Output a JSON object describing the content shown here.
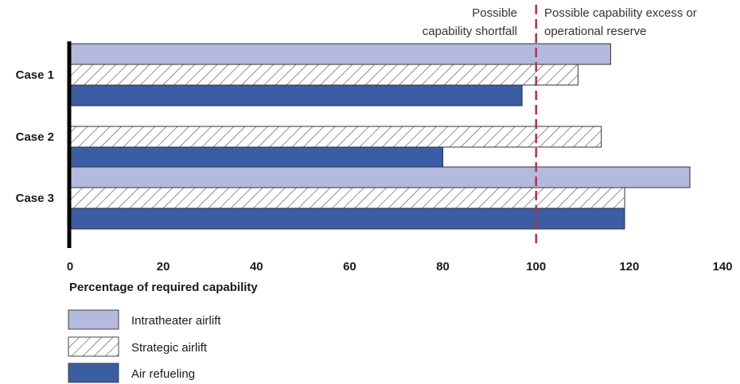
{
  "chart_data": {
    "type": "bar",
    "orientation": "horizontal",
    "categories": [
      "Case 1",
      "Case 2",
      "Case 3"
    ],
    "series": [
      {
        "name": "Intratheater airlift",
        "values": [
          116,
          null,
          133
        ],
        "color": "#b4b9de",
        "pattern": "solid"
      },
      {
        "name": "Strategic airlift",
        "values": [
          109,
          114,
          119
        ],
        "color": "#ffffff",
        "pattern": "hatched"
      },
      {
        "name": "Air refueling",
        "values": [
          97,
          80,
          119
        ],
        "color": "#3a5da3",
        "pattern": "solid"
      }
    ],
    "xlabel": "Percentage of required capability",
    "xlim": [
      0,
      140
    ],
    "xticks": [
      0,
      20,
      40,
      60,
      80,
      100,
      120,
      140
    ],
    "reference_line": {
      "value": 100,
      "color": "#b0354a",
      "style": "dashed"
    },
    "annotations": {
      "left_line1": "Possible",
      "left_line2": "capability shortfall",
      "right_line1": "Possible capability excess or",
      "right_line2": "operational reserve"
    },
    "grid": false,
    "legend_placement": "bottom-left"
  }
}
